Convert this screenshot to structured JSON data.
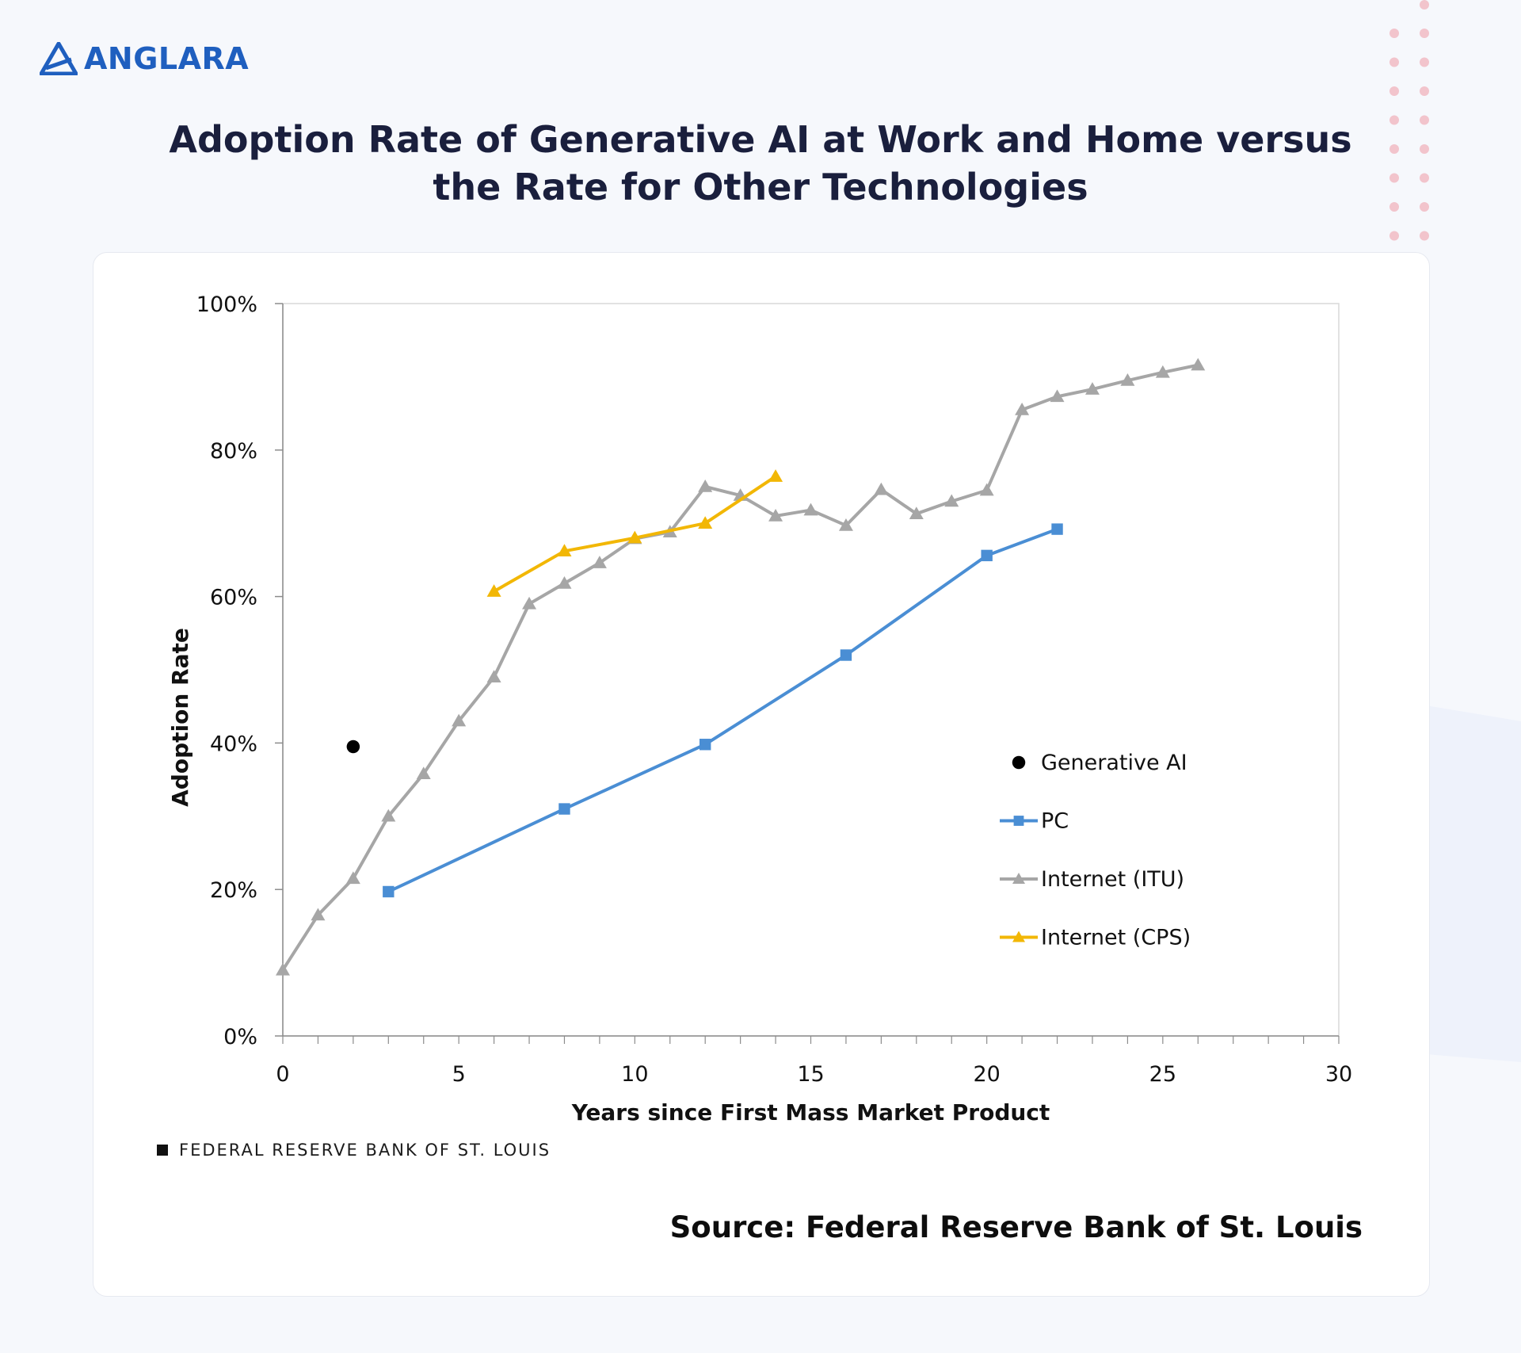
{
  "brand": {
    "name": "ANGLARA",
    "color": "#1f5fbf",
    "logo_icon": "triangle-logo-icon"
  },
  "title_lines": [
    "Adoption Rate of Generative AI at Work and Home versus",
    "the Rate for Other Technologies"
  ],
  "footer_mark": "FEDERAL RESERVE BANK OF ST. LOUIS",
  "source": "Source: Federal Reserve Bank of St. Louis",
  "chart_data": {
    "type": "line",
    "title": "",
    "xlabel": "Years since First Mass Market Product",
    "ylabel": "Adoption Rate",
    "xlim": [
      0,
      30
    ],
    "ylim": [
      0,
      100
    ],
    "x_ticks": [
      "0",
      "5",
      "10",
      "15",
      "20",
      "25",
      "30"
    ],
    "y_ticks": [
      "0%",
      "20%",
      "40%",
      "60%",
      "80%",
      "100%"
    ],
    "legend_position": "right",
    "grid": false,
    "series": [
      {
        "name": "Generative AI",
        "color": "#000000",
        "marker": "circle",
        "points": [
          [
            2,
            39.5
          ]
        ]
      },
      {
        "name": "PC",
        "color": "#4a8ed4",
        "marker": "square",
        "points": [
          [
            3,
            19.7
          ],
          [
            8,
            31
          ],
          [
            12,
            39.8
          ],
          [
            16,
            52
          ],
          [
            20,
            65.6
          ],
          [
            22,
            69.2
          ]
        ]
      },
      {
        "name": "Internet (ITU)",
        "color": "#a6a6a6",
        "marker": "triangle",
        "points": [
          [
            0,
            9
          ],
          [
            1,
            16.5
          ],
          [
            2,
            21.5
          ],
          [
            3,
            30
          ],
          [
            4,
            35.8
          ],
          [
            5,
            43
          ],
          [
            6,
            49
          ],
          [
            7,
            59
          ],
          [
            8,
            61.8
          ],
          [
            9,
            64.6
          ],
          [
            10,
            67.9
          ],
          [
            11,
            68.8
          ],
          [
            12,
            75
          ],
          [
            13,
            73.8
          ],
          [
            14,
            71
          ],
          [
            15,
            71.8
          ],
          [
            16,
            69.7
          ],
          [
            17,
            74.6
          ],
          [
            18,
            71.3
          ],
          [
            19,
            73
          ],
          [
            20,
            74.5
          ],
          [
            21,
            85.5
          ],
          [
            22,
            87.3
          ],
          [
            23,
            88.3
          ],
          [
            24,
            89.5
          ],
          [
            25,
            90.6
          ],
          [
            26,
            91.6
          ]
        ]
      },
      {
        "name": "Internet (CPS)",
        "color": "#f2b705",
        "marker": "triangle",
        "points": [
          [
            6,
            60.7
          ],
          [
            8,
            66.2
          ],
          [
            10,
            68
          ],
          [
            12,
            70
          ],
          [
            14,
            76.4
          ]
        ]
      }
    ]
  }
}
